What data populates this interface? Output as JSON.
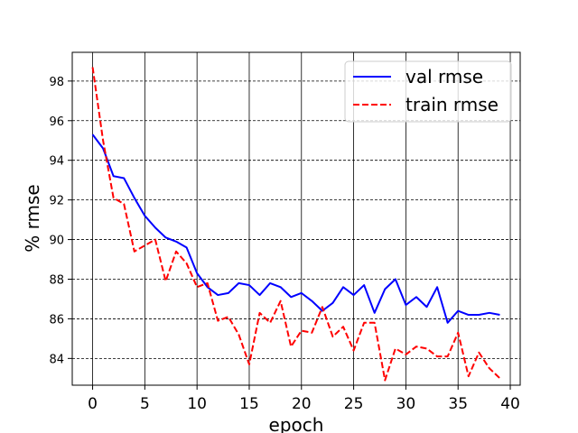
{
  "chart_data": {
    "type": "line",
    "title": "",
    "xlabel": "epoch",
    "ylabel": "% rmse",
    "xlim": [
      -1.95,
      40.95
    ],
    "ylim": [
      82.65,
      99.45
    ],
    "x_ticks": [
      0,
      5,
      10,
      15,
      20,
      25,
      30,
      35,
      40
    ],
    "y_ticks": [
      84,
      86,
      88,
      90,
      92,
      94,
      96,
      98
    ],
    "grid": {
      "x": "solid",
      "y": "dashed"
    },
    "legend_position": "top-right",
    "x": [
      0,
      1,
      2,
      3,
      4,
      5,
      6,
      7,
      8,
      9,
      10,
      11,
      12,
      13,
      14,
      15,
      16,
      17,
      18,
      19,
      20,
      21,
      22,
      23,
      24,
      25,
      26,
      27,
      28,
      29,
      30,
      31,
      32,
      33,
      34,
      35,
      36,
      37,
      38,
      39
    ],
    "series": [
      {
        "name": "val rmse",
        "color": "#0000ff",
        "style": "solid",
        "values": [
          95.3,
          94.6,
          93.2,
          93.1,
          92.1,
          91.2,
          90.6,
          90.1,
          89.9,
          89.6,
          88.3,
          87.6,
          87.2,
          87.3,
          87.8,
          87.7,
          87.2,
          87.8,
          87.6,
          87.1,
          87.3,
          86.9,
          86.4,
          86.8,
          87.6,
          87.2,
          87.7,
          86.3,
          87.5,
          88.0,
          86.7,
          87.1,
          86.6,
          87.6,
          85.8,
          86.4,
          86.2,
          86.2,
          86.3,
          86.2
        ]
      },
      {
        "name": "train rmse",
        "color": "#ff0000",
        "style": "dashed",
        "values": [
          98.7,
          95.0,
          92.1,
          91.8,
          89.4,
          89.7,
          90.0,
          87.9,
          89.4,
          88.8,
          87.6,
          87.8,
          85.9,
          86.1,
          85.2,
          83.7,
          86.3,
          85.8,
          86.9,
          84.6,
          85.4,
          85.3,
          86.6,
          85.1,
          85.6,
          84.4,
          85.8,
          85.8,
          82.9,
          84.5,
          84.2,
          84.6,
          84.5,
          84.1,
          84.1,
          85.3,
          83.1,
          84.3,
          83.5,
          83.0
        ]
      }
    ]
  }
}
